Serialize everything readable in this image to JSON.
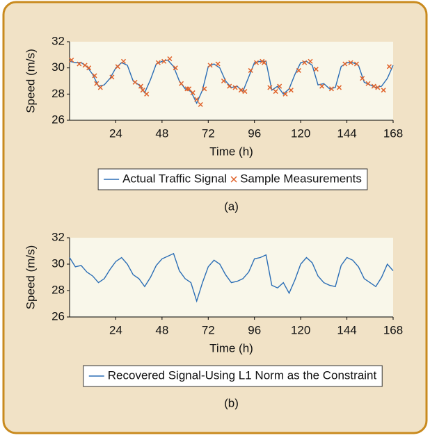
{
  "chart_data": [
    {
      "type": "line",
      "ylabel": "Speed (m/s)",
      "xlabel": "Time (h)",
      "caption": "(a)",
      "xlim": [
        0,
        168
      ],
      "xticks": [
        24,
        48,
        72,
        96,
        120,
        144,
        168
      ],
      "ylim": [
        26,
        32
      ],
      "yticks": [
        26,
        28,
        30,
        32
      ],
      "x": [
        0,
        3,
        6,
        9,
        12,
        15,
        18,
        21,
        24,
        27,
        30,
        33,
        36,
        39,
        42,
        45,
        48,
        51,
        54,
        57,
        60,
        63,
        66,
        69,
        72,
        75,
        78,
        81,
        84,
        87,
        90,
        93,
        96,
        99,
        102,
        105,
        108,
        111,
        114,
        117,
        120,
        123,
        126,
        129,
        132,
        135,
        138,
        141,
        144,
        147,
        150,
        153,
        156,
        159,
        162,
        165,
        168
      ],
      "series": [
        {
          "name": "Actual Traffic Signal",
          "color": "#2a6db5",
          "type": "line",
          "values": [
            30.5,
            30.4,
            30.4,
            30.1,
            29.5,
            28.6,
            28.7,
            29.2,
            30.0,
            30.4,
            30.2,
            29.0,
            28.7,
            28.1,
            29.1,
            30.3,
            30.5,
            30.6,
            30.1,
            29.0,
            28.4,
            28.2,
            27.3,
            28.3,
            30.1,
            30.3,
            30.0,
            29.0,
            28.5,
            28.6,
            28.2,
            29.3,
            30.4,
            30.5,
            30.5,
            28.3,
            28.6,
            28.0,
            28.4,
            29.5,
            30.4,
            30.5,
            30.2,
            28.7,
            28.8,
            28.4,
            28.5,
            30.1,
            30.4,
            30.4,
            30.2,
            28.9,
            28.7,
            28.5,
            28.6,
            29.2,
            30.2
          ]
        },
        {
          "name": "Sample Measurements",
          "color": "#e0622a",
          "type": "scatter",
          "x": [
            1,
            5,
            8,
            10,
            13,
            14,
            16,
            22,
            25,
            28,
            34,
            37,
            38,
            40,
            46,
            49,
            52,
            55,
            58,
            61,
            62,
            64,
            66,
            68,
            70,
            73,
            77,
            80,
            83,
            86,
            89,
            91,
            94,
            97,
            100,
            101,
            104,
            107,
            109,
            112,
            115,
            119,
            122,
            125,
            128,
            131,
            136,
            140,
            143,
            146,
            149,
            152,
            155,
            158,
            160,
            163,
            166
          ],
          "values": [
            30.6,
            30.3,
            30.2,
            30.0,
            29.4,
            28.8,
            28.5,
            29.3,
            30.1,
            30.5,
            28.9,
            28.6,
            28.3,
            28.0,
            30.4,
            30.5,
            30.7,
            30.0,
            28.8,
            28.4,
            28.4,
            28.1,
            27.6,
            27.2,
            28.4,
            30.2,
            30.3,
            29.0,
            28.6,
            28.5,
            28.3,
            28.2,
            29.8,
            30.4,
            30.5,
            30.4,
            28.5,
            28.2,
            28.6,
            28.0,
            28.3,
            29.8,
            30.4,
            30.5,
            29.9,
            28.6,
            28.4,
            28.5,
            30.3,
            30.4,
            30.3,
            29.2,
            28.8,
            28.6,
            28.5,
            28.3,
            30.1
          ]
        }
      ]
    },
    {
      "type": "line",
      "ylabel": "Speed (m/s)",
      "xlabel": "Time (h)",
      "caption": "(b)",
      "xlim": [
        0,
        168
      ],
      "xticks": [
        24,
        48,
        72,
        96,
        120,
        144,
        168
      ],
      "ylim": [
        26,
        32
      ],
      "yticks": [
        26,
        28,
        30,
        32
      ],
      "x": [
        0,
        3,
        6,
        9,
        12,
        15,
        18,
        21,
        24,
        27,
        30,
        33,
        36,
        39,
        42,
        45,
        48,
        51,
        54,
        57,
        60,
        63,
        66,
        69,
        72,
        75,
        78,
        81,
        84,
        87,
        90,
        93,
        96,
        99,
        102,
        105,
        108,
        111,
        114,
        117,
        120,
        123,
        126,
        129,
        132,
        135,
        138,
        141,
        144,
        147,
        150,
        153,
        156,
        159,
        162,
        165,
        168
      ],
      "series": [
        {
          "name": "Recovered Signal-Using L1 Norm as the Constraint",
          "color": "#2a6db5",
          "type": "line",
          "values": [
            30.5,
            29.8,
            29.9,
            29.4,
            29.1,
            28.6,
            28.9,
            29.6,
            30.2,
            30.5,
            30.0,
            29.2,
            28.9,
            28.3,
            29.0,
            29.9,
            30.4,
            30.6,
            30.8,
            29.5,
            28.9,
            28.6,
            27.2,
            28.6,
            29.8,
            30.3,
            30.0,
            29.2,
            28.6,
            28.7,
            28.9,
            29.4,
            30.4,
            30.5,
            30.7,
            28.4,
            28.2,
            28.6,
            27.8,
            28.8,
            30.0,
            30.5,
            30.1,
            29.1,
            28.6,
            28.4,
            28.3,
            29.9,
            30.5,
            30.3,
            29.8,
            28.9,
            28.6,
            28.3,
            29.0,
            30.0,
            29.5
          ]
        }
      ]
    }
  ]
}
